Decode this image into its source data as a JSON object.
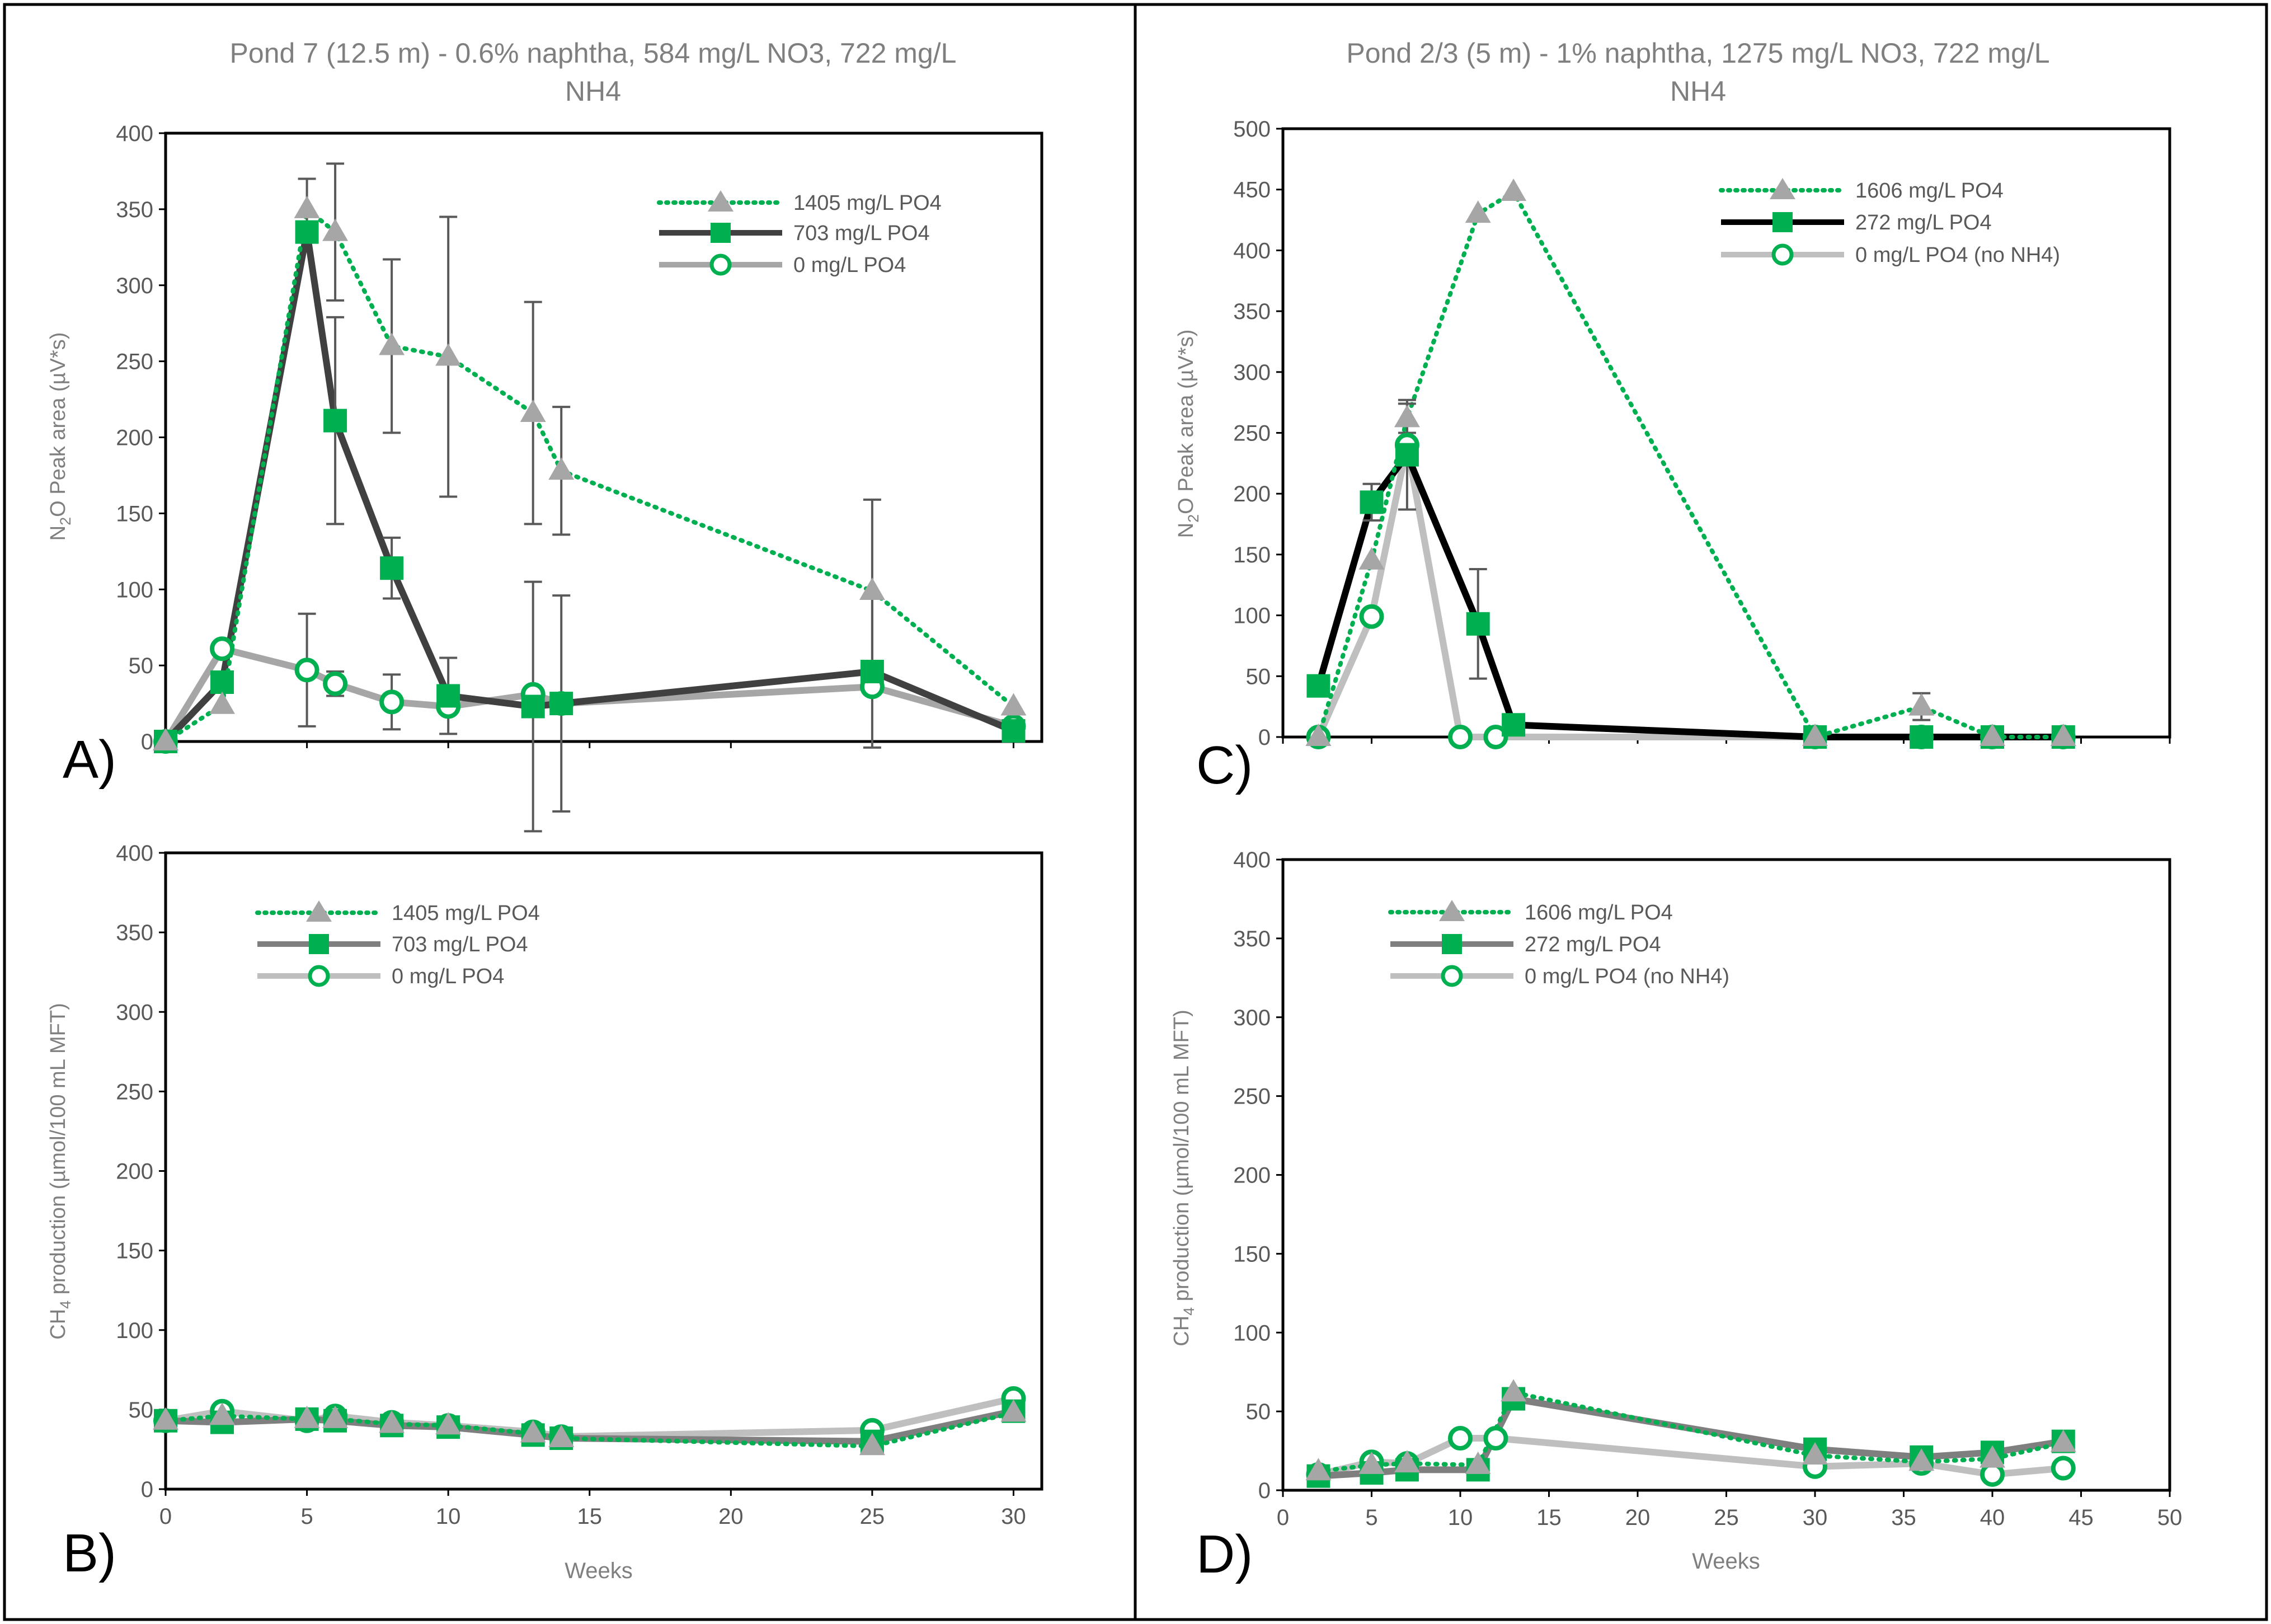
{
  "colors": {
    "green": "#00b050",
    "grey_light": "#a6a6a6",
    "grey_mid": "#7f7f7f",
    "grey_dark": "#404040",
    "black": "#000000",
    "text": "#7f7f7f",
    "errbar": "#595959"
  },
  "panel_labels": {
    "A": "A)",
    "B": "B)",
    "C": "C)",
    "D": "D)"
  },
  "chart_data": [
    {
      "id": "A",
      "type": "line",
      "title_line1": "Pond 7 (12.5 m) - 0.6% naphtha, 584 mg/L NO3, 722 mg/L",
      "title_line2": "NH4",
      "ylabel_pre": "N",
      "ylabel_sub": "2",
      "ylabel_post": "O Peak area (µV*s)",
      "xlim": [
        0,
        31
      ],
      "ylim": [
        0,
        400
      ],
      "yticks": [
        0,
        50,
        100,
        150,
        200,
        250,
        300,
        350,
        400
      ],
      "xticks": [
        0,
        5,
        10,
        15,
        20,
        25,
        30
      ],
      "show_xticklabels": false,
      "series": [
        {
          "name": "1405 mg/L PO4",
          "style": "dotted-triangle",
          "x": [
            0,
            2,
            5,
            6,
            8,
            10,
            13,
            14,
            25,
            30
          ],
          "y": [
            0,
            24,
            350,
            335,
            260,
            253,
            216,
            178,
            99,
            23
          ],
          "err": [
            0,
            0,
            20,
            45,
            57,
            92,
            73,
            42,
            60,
            0
          ]
        },
        {
          "name": "703 mg/L PO4",
          "style": "solid-square",
          "x": [
            0,
            2,
            5,
            6,
            8,
            10,
            13,
            14,
            25,
            30
          ],
          "y": [
            0,
            39,
            335,
            211,
            114,
            30,
            23,
            25,
            46,
            7
          ],
          "err": [
            0,
            0,
            0,
            68,
            20,
            25,
            82,
            71,
            50,
            0
          ]
        },
        {
          "name": "0 mg/L PO4",
          "style": "solid-circle",
          "x": [
            0,
            2,
            5,
            6,
            8,
            10,
            13,
            14,
            25,
            30
          ],
          "y": [
            0,
            61,
            47,
            38,
            26,
            23,
            31,
            25,
            36,
            10
          ],
          "err": [
            0,
            0,
            37,
            8,
            18,
            0,
            0,
            0,
            0,
            0
          ]
        }
      ]
    },
    {
      "id": "B",
      "type": "line",
      "ylabel_pre": "CH",
      "ylabel_sub": "4",
      "ylabel_post": " production (µmol/100 mL MFT)",
      "xlabel": "Weeks",
      "xlim": [
        0,
        31
      ],
      "ylim": [
        0,
        400
      ],
      "yticks": [
        0,
        50,
        100,
        150,
        200,
        250,
        300,
        350,
        400
      ],
      "xticks": [
        0,
        5,
        10,
        15,
        20,
        25,
        30
      ],
      "show_xticklabels": true,
      "series": [
        {
          "name": "1405 mg/L PO4",
          "style": "dotted-triangle",
          "x": [
            0,
            2,
            5,
            6,
            8,
            10,
            13,
            14,
            25,
            30
          ],
          "y": [
            43,
            46,
            44,
            44,
            41,
            40,
            35,
            32,
            27,
            48
          ]
        },
        {
          "name": "703 mg/L PO4",
          "style": "solid-square",
          "x": [
            0,
            2,
            5,
            6,
            8,
            10,
            13,
            14,
            25,
            30
          ],
          "y": [
            43,
            42,
            44,
            43,
            40,
            39,
            34,
            32,
            30,
            49
          ]
        },
        {
          "name": "0 mg/L PO4",
          "style": "solid-circle",
          "x": [
            0,
            2,
            5,
            6,
            8,
            10,
            13,
            14,
            25,
            30
          ],
          "y": [
            43,
            49,
            43,
            46,
            42,
            40,
            36,
            33,
            37,
            57
          ]
        }
      ]
    },
    {
      "id": "C",
      "type": "line",
      "title_line1": "Pond 2/3 (5 m) - 1% naphtha, 1275 mg/L NO3, 722 mg/L",
      "title_line2": "NH4",
      "ylabel_pre": "N",
      "ylabel_sub": "2",
      "ylabel_post": "O Peak area (µV*s)",
      "xlim": [
        0,
        50
      ],
      "ylim": [
        0,
        500
      ],
      "yticks": [
        0,
        50,
        100,
        150,
        200,
        250,
        300,
        350,
        400,
        450,
        500
      ],
      "xticks": [
        0,
        5,
        10,
        15,
        20,
        25,
        30,
        35,
        40,
        45,
        50
      ],
      "show_xticklabels": false,
      "series": [
        {
          "name": "1606 mg/L PO4",
          "style": "dotted-triangle",
          "x": [
            2,
            5,
            7,
            11,
            13,
            30,
            36,
            40,
            44
          ],
          "y": [
            0,
            145,
            262,
            430,
            448,
            0,
            25,
            0,
            0
          ],
          "err": [
            0,
            0,
            12,
            0,
            0,
            0,
            11,
            0,
            0
          ]
        },
        {
          "name": "272 mg/L PO4",
          "style": "solid-square",
          "x": [
            2,
            5,
            7,
            11,
            13,
            30,
            36,
            40,
            44
          ],
          "y": [
            42,
            193,
            232,
            93,
            10,
            0,
            0,
            0,
            0
          ],
          "err": [
            0,
            15,
            45,
            45,
            0,
            0,
            0,
            0,
            0
          ]
        },
        {
          "name": "0 mg/L PO4 (no NH4)",
          "style": "solid-circle",
          "x": [
            2,
            5,
            7,
            10,
            12,
            30,
            36,
            40,
            44
          ],
          "y": [
            0,
            99,
            240,
            0,
            0,
            0,
            0,
            0,
            0
          ]
        }
      ]
    },
    {
      "id": "D",
      "type": "line",
      "ylabel_pre": "CH",
      "ylabel_sub": "4",
      "ylabel_post": " production (µmol/100 mL MFT)",
      "xlabel": "Weeks",
      "xlim": [
        0,
        50
      ],
      "ylim": [
        0,
        400
      ],
      "yticks": [
        0,
        50,
        100,
        150,
        200,
        250,
        300,
        350,
        400
      ],
      "xticks": [
        0,
        5,
        10,
        15,
        20,
        25,
        30,
        35,
        40,
        45,
        50
      ],
      "show_xticklabels": true,
      "series": [
        {
          "name": "1606 mg/L PO4",
          "style": "dotted-triangle",
          "x": [
            2,
            5,
            7,
            11,
            13,
            30,
            36,
            40,
            44
          ],
          "y": [
            12,
            16,
            17,
            16,
            62,
            22,
            18,
            20,
            30
          ]
        },
        {
          "name": "272 mg/L PO4",
          "style": "solid-square",
          "x": [
            2,
            5,
            7,
            11,
            13,
            30,
            36,
            40,
            44
          ],
          "y": [
            9,
            11,
            13,
            13,
            58,
            26,
            21,
            24,
            31
          ]
        },
        {
          "name": "0 mg/L PO4 (no NH4)",
          "style": "solid-circle",
          "x": [
            2,
            5,
            7,
            10,
            12,
            30,
            36,
            40,
            44
          ],
          "y": [
            10,
            18,
            17,
            33,
            33,
            15,
            17,
            10,
            14
          ]
        }
      ]
    }
  ]
}
